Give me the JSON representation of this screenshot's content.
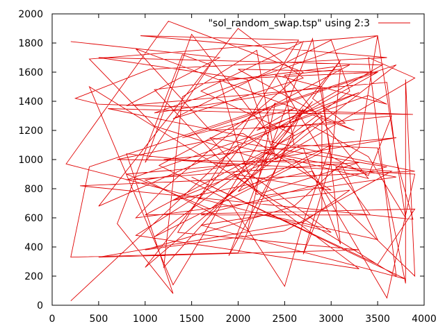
{
  "chart_data": {
    "type": "line",
    "title": "",
    "xlabel": "",
    "ylabel": "",
    "xlim": [
      0,
      4000
    ],
    "ylim": [
      0,
      2000
    ],
    "x_ticks": [
      "0",
      "500",
      "1000",
      "1500",
      "2000",
      "2500",
      "3000",
      "3500",
      "4000"
    ],
    "y_ticks": [
      "0",
      "200",
      "400",
      "600",
      "800",
      "1000",
      "1200",
      "1400",
      "1600",
      "1800",
      "2000"
    ],
    "grid": false,
    "legend_position": "top-right",
    "line_color": "#e00000",
    "series": [
      {
        "name": "\"sol_random_swap.tsp\" using 2:3",
        "points": [
          [
            200,
            1810
          ],
          [
            1800,
            1700
          ],
          [
            800,
            1370
          ],
          [
            3600,
            1530
          ],
          [
            3700,
            1000
          ],
          [
            3880,
            590
          ],
          [
            300,
            820
          ],
          [
            3900,
            920
          ],
          [
            600,
            1350
          ],
          [
            2300,
            1320
          ],
          [
            3880,
            1310
          ],
          [
            500,
            1380
          ],
          [
            250,
            1420
          ],
          [
            1050,
            1620
          ],
          [
            3600,
            1700
          ],
          [
            950,
            1850
          ],
          [
            2650,
            1820
          ],
          [
            1350,
            500
          ],
          [
            3300,
            380
          ],
          [
            500,
            330
          ],
          [
            2700,
            570
          ],
          [
            3200,
            790
          ],
          [
            900,
            600
          ],
          [
            1200,
            800
          ],
          [
            2700,
            1600
          ],
          [
            1250,
            1950
          ],
          [
            150,
            970
          ],
          [
            3000,
            500
          ],
          [
            2000,
            960
          ],
          [
            800,
            1040
          ],
          [
            1300,
            80
          ],
          [
            700,
            560
          ],
          [
            1400,
            1720
          ],
          [
            1700,
            1650
          ],
          [
            1000,
            980
          ],
          [
            1500,
            1860
          ],
          [
            2300,
            1200
          ],
          [
            1300,
            140
          ],
          [
            400,
            1500
          ],
          [
            3700,
            200
          ],
          [
            3400,
            1700
          ],
          [
            3900,
            1560
          ],
          [
            2400,
            1000
          ],
          [
            2200,
            1750
          ],
          [
            1400,
            1430
          ],
          [
            1200,
            260
          ],
          [
            2800,
            1400
          ],
          [
            2000,
            780
          ],
          [
            3000,
            1100
          ],
          [
            2700,
            570
          ],
          [
            2500,
            130
          ],
          [
            1900,
            720
          ],
          [
            1150,
            960
          ],
          [
            3200,
            1650
          ],
          [
            1100,
            1480
          ],
          [
            1800,
            1000
          ],
          [
            3500,
            1600
          ],
          [
            2000,
            1620
          ],
          [
            2900,
            1300
          ],
          [
            3250,
            1200
          ],
          [
            900,
            1760
          ],
          [
            1700,
            1200
          ],
          [
            3150,
            1250
          ],
          [
            2800,
            1420
          ],
          [
            3100,
            1680
          ],
          [
            2350,
            1100
          ],
          [
            2100,
            1550
          ],
          [
            500,
            1700
          ],
          [
            3550,
            1650
          ],
          [
            2600,
            1300
          ],
          [
            2300,
            1210
          ],
          [
            3650,
            1300
          ],
          [
            3400,
            890
          ],
          [
            3000,
            1020
          ],
          [
            2800,
            1830
          ],
          [
            1900,
            340
          ],
          [
            2600,
            1170
          ],
          [
            1600,
            1470
          ],
          [
            2700,
            1810
          ],
          [
            2500,
            1500
          ],
          [
            2600,
            1100
          ],
          [
            3500,
            1080
          ],
          [
            3800,
            150
          ],
          [
            3800,
            1550
          ],
          [
            3900,
            200
          ],
          [
            2600,
            1000
          ],
          [
            800,
            900
          ],
          [
            1700,
            660
          ],
          [
            3700,
            1650
          ],
          [
            400,
            950
          ],
          [
            200,
            330
          ],
          [
            2000,
            360
          ],
          [
            2700,
            1350
          ],
          [
            2300,
            990
          ],
          [
            1100,
            1230
          ],
          [
            400,
            1690
          ],
          [
            3500,
            1850
          ],
          [
            3300,
            1080
          ],
          [
            2600,
            680
          ],
          [
            1000,
            380
          ],
          [
            2500,
            510
          ],
          [
            3650,
            920
          ],
          [
            3050,
            950
          ],
          [
            3420,
            620
          ],
          [
            1600,
            620
          ],
          [
            3600,
            950
          ],
          [
            1700,
            1150
          ],
          [
            2250,
            750
          ],
          [
            3700,
            880
          ],
          [
            2300,
            1050
          ],
          [
            900,
            480
          ],
          [
            3300,
            250
          ],
          [
            1950,
            900
          ],
          [
            3000,
            790
          ],
          [
            2050,
            1180
          ],
          [
            700,
            1000
          ],
          [
            3100,
            980
          ],
          [
            3500,
            450
          ],
          [
            2300,
            620
          ],
          [
            1600,
            550
          ],
          [
            3800,
            180
          ],
          [
            1500,
            880
          ],
          [
            3500,
            280
          ],
          [
            3900,
            660
          ],
          [
            1000,
            620
          ],
          [
            2800,
            1230
          ],
          [
            3400,
            1020
          ],
          [
            3800,
            600
          ],
          [
            3500,
            1850
          ],
          [
            1100,
            1320
          ],
          [
            2900,
            1500
          ],
          [
            3100,
            420
          ],
          [
            2700,
            1080
          ],
          [
            1300,
            720
          ],
          [
            2800,
            920
          ],
          [
            3600,
            50
          ],
          [
            3900,
            900
          ],
          [
            1200,
            1000
          ],
          [
            3700,
            1150
          ],
          [
            1000,
            860
          ],
          [
            2100,
            510
          ],
          [
            2400,
            1390
          ],
          [
            1000,
            260
          ],
          [
            2900,
            1300
          ],
          [
            2900,
            670
          ],
          [
            2700,
            350
          ],
          [
            3000,
            990
          ],
          [
            3100,
            1620
          ],
          [
            2500,
            1580
          ],
          [
            3400,
            870
          ],
          [
            2000,
            1090
          ],
          [
            2200,
            760
          ],
          [
            3300,
            980
          ],
          [
            800,
            860
          ],
          [
            3400,
            1440
          ],
          [
            3600,
            1380
          ],
          [
            2400,
            1580
          ],
          [
            2900,
            1050
          ],
          [
            1100,
            470
          ],
          [
            3200,
            1470
          ],
          [
            3000,
            1820
          ],
          [
            1300,
            1280
          ],
          [
            2700,
            1560
          ],
          [
            2000,
            1900
          ],
          [
            500,
            680
          ],
          [
            3300,
            1460
          ],
          [
            2200,
            1200
          ],
          [
            2600,
            1350
          ],
          [
            1400,
            1150
          ],
          [
            3500,
            1600
          ],
          [
            1800,
            1550
          ],
          [
            2000,
            1100
          ],
          [
            200,
            30
          ]
        ]
      }
    ]
  }
}
